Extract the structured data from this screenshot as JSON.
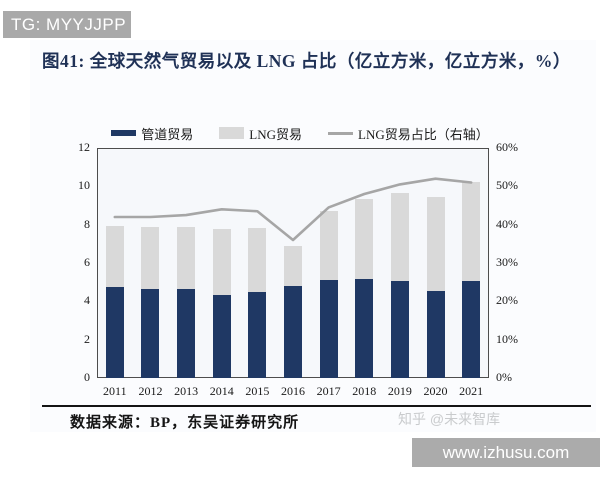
{
  "header": {
    "tg_label": "TG: MYYJJPP"
  },
  "figure": {
    "title": "图41: 全球天然气贸易以及 LNG 占比（亿立方米，亿立方米，%）",
    "source": "数据来源：BP，东吴证券研究所",
    "watermark": "知乎 @未来智库",
    "site": "www.izhusu.com"
  },
  "colors": {
    "pipeline_bar": "#1f3864",
    "lng_bar": "#d9d9d9",
    "share_line": "#a6a6a6",
    "title_navy": "#1f3156"
  },
  "chart_data": {
    "type": "bar",
    "subtype": "stacked bars with line on secondary axis",
    "title": "全球天然气贸易以及 LNG 占比（亿立方米，亿立方米，%）",
    "categories": [
      "2011",
      "2012",
      "2013",
      "2014",
      "2015",
      "2016",
      "2017",
      "2018",
      "2019",
      "2020",
      "2021"
    ],
    "series": [
      {
        "name": "管道贸易",
        "type": "bar",
        "axis": "left",
        "values": [
          4.75,
          4.65,
          4.65,
          4.35,
          4.5,
          4.8,
          5.1,
          5.15,
          5.05,
          4.55,
          5.05
        ]
      },
      {
        "name": "LNG贸易",
        "type": "bar",
        "axis": "left",
        "values": [
          3.2,
          3.25,
          3.25,
          3.4,
          3.35,
          2.1,
          3.6,
          4.2,
          4.6,
          4.9,
          5.2
        ]
      },
      {
        "name": "LNG贸易占比（右轴）",
        "type": "line",
        "axis": "right",
        "values": [
          42,
          42,
          42.5,
          44,
          43.5,
          36,
          44.5,
          48,
          50.5,
          52,
          51
        ]
      }
    ],
    "left_axis": {
      "min": 0,
      "max": 12,
      "ticks": [
        0,
        2,
        4,
        6,
        8,
        10,
        12
      ]
    },
    "right_axis": {
      "min": 0,
      "max": 60,
      "tick_labels": [
        "0%",
        "10%",
        "20%",
        "30%",
        "40%",
        "50%",
        "60%"
      ]
    },
    "grid": false,
    "legend_position": "top"
  }
}
